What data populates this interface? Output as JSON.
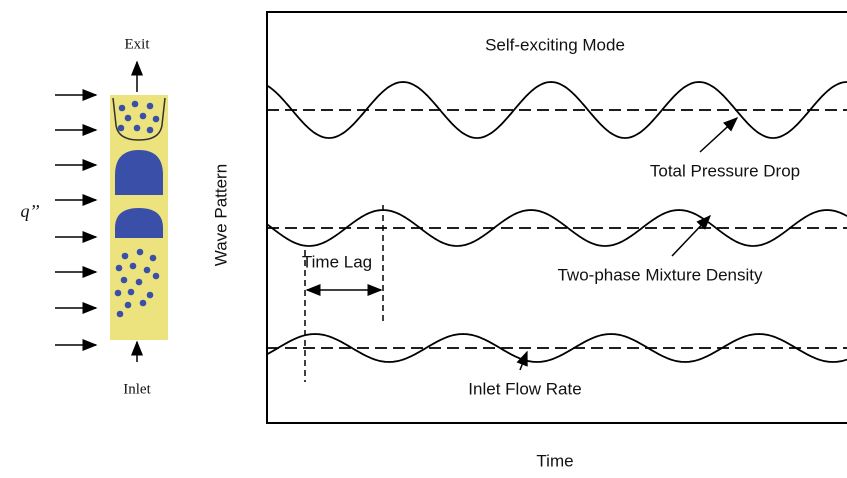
{
  "tube": {
    "exit_label": "Exit",
    "inlet_label": "Inlet",
    "heat_flux_label": "q’’"
  },
  "plot": {
    "title": "Self-exciting Mode",
    "y_axis_label": "Wave Pattern",
    "x_axis_label": "Time",
    "waves": [
      {
        "label": "Total Pressure Drop"
      },
      {
        "label": "Two-phase Mixture Density"
      },
      {
        "label": "Inlet Flow Rate"
      }
    ],
    "time_lag_label": "Time Lag"
  }
}
